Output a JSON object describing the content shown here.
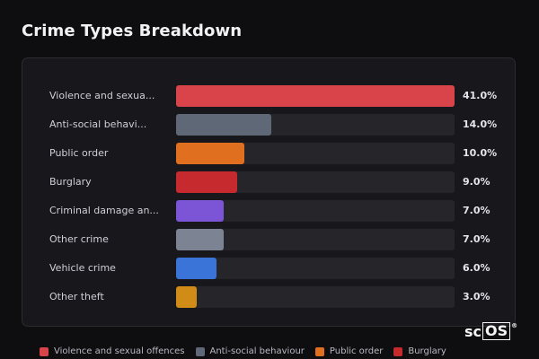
{
  "title": "Crime Types Breakdown",
  "chart_data": {
    "type": "bar",
    "orientation": "horizontal",
    "title": "Crime Types Breakdown",
    "categories": [
      "Violence and sexua...",
      "Anti-social behavi...",
      "Public order",
      "Burglary",
      "Criminal damage an...",
      "Other crime",
      "Vehicle crime",
      "Other theft"
    ],
    "values": [
      41.0,
      14.0,
      10.0,
      9.0,
      7.0,
      7.0,
      6.0,
      3.0
    ],
    "value_labels": [
      "41.0%",
      "14.0%",
      "10.0%",
      "9.0%",
      "7.0%",
      "7.0%",
      "6.0%",
      "3.0%"
    ],
    "colors": [
      "#d9434a",
      "#5f6877",
      "#e0701f",
      "#c62a2e",
      "#7b55d6",
      "#7c8494",
      "#3a74d8",
      "#d08c17"
    ],
    "xlim": [
      0,
      41.0
    ],
    "unit": "%"
  },
  "legend": [
    {
      "label": "Violence and sexual offences",
      "color": "#d9434a"
    },
    {
      "label": "Anti-social behaviour",
      "color": "#5f6877"
    },
    {
      "label": "Public order",
      "color": "#e0701f"
    },
    {
      "label": "Burglary",
      "color": "#c62a2e"
    }
  ],
  "logo": {
    "prefix": "sc",
    "boxed": "OS",
    "mark": "®"
  }
}
